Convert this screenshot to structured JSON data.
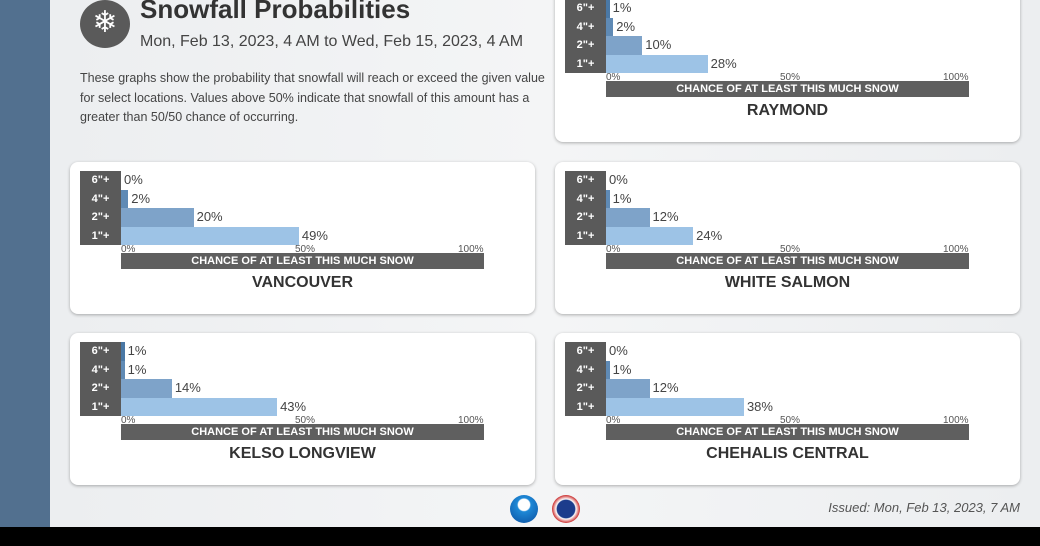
{
  "header": {
    "icon": "snowflake-icon",
    "glyph": "❄",
    "title": "Snowfall Probabilities",
    "subtitle": "Mon, Feb 13, 2023, 4 AM to Wed, Feb 15, 2023, 4 AM",
    "description": "These graphs show the probability that snowfall will reach or exceed the given value for select locations. Values above 50% indicate that snowfall of this amount has a greater than 50/50 chance of occurring."
  },
  "footer": {
    "issued": "Issued: Mon, Feb 13, 2023, 7 AM",
    "logos": [
      "NOAA",
      "National Weather Service"
    ]
  },
  "colors": {
    "6\"+": "#4a78a5",
    "4\"+": "#5f8ab5",
    "2\"+": "#7ea3c9",
    "1\"+": "#9dc3e6"
  },
  "chart_data": [
    {
      "type": "bar",
      "title": "RAYMOND",
      "categories": [
        "6\"+",
        "4\"+",
        "2\"+",
        "1\"+"
      ],
      "values": [
        1,
        2,
        10,
        28
      ],
      "xlabel": "CHANCE OF AT LEAST THIS MUCH SNOW",
      "xticks": [
        "0%",
        "50%",
        "100%"
      ],
      "xlim": [
        0,
        100
      ]
    },
    {
      "type": "bar",
      "title": "VANCOUVER",
      "categories": [
        "6\"+",
        "4\"+",
        "2\"+",
        "1\"+"
      ],
      "values": [
        0,
        2,
        20,
        49
      ],
      "xlabel": "CHANCE OF AT LEAST THIS MUCH SNOW",
      "xticks": [
        "0%",
        "50%",
        "100%"
      ],
      "xlim": [
        0,
        100
      ]
    },
    {
      "type": "bar",
      "title": "WHITE SALMON",
      "categories": [
        "6\"+",
        "4\"+",
        "2\"+",
        "1\"+"
      ],
      "values": [
        0,
        1,
        12,
        24
      ],
      "xlabel": "CHANCE OF AT LEAST THIS MUCH SNOW",
      "xticks": [
        "0%",
        "50%",
        "100%"
      ],
      "xlim": [
        0,
        100
      ]
    },
    {
      "type": "bar",
      "title": "KELSO LONGVIEW",
      "categories": [
        "6\"+",
        "4\"+",
        "2\"+",
        "1\"+"
      ],
      "values": [
        1,
        1,
        14,
        43
      ],
      "xlabel": "CHANCE OF AT LEAST THIS MUCH SNOW",
      "xticks": [
        "0%",
        "50%",
        "100%"
      ],
      "xlim": [
        0,
        100
      ]
    },
    {
      "type": "bar",
      "title": "CHEHALIS CENTRAL",
      "categories": [
        "6\"+",
        "4\"+",
        "2\"+",
        "1\"+"
      ],
      "values": [
        0,
        1,
        12,
        38
      ],
      "xlabel": "CHANCE OF AT LEAST THIS MUCH SNOW",
      "xticks": [
        "0%",
        "50%",
        "100%"
      ],
      "xlim": [
        0,
        100
      ]
    }
  ]
}
